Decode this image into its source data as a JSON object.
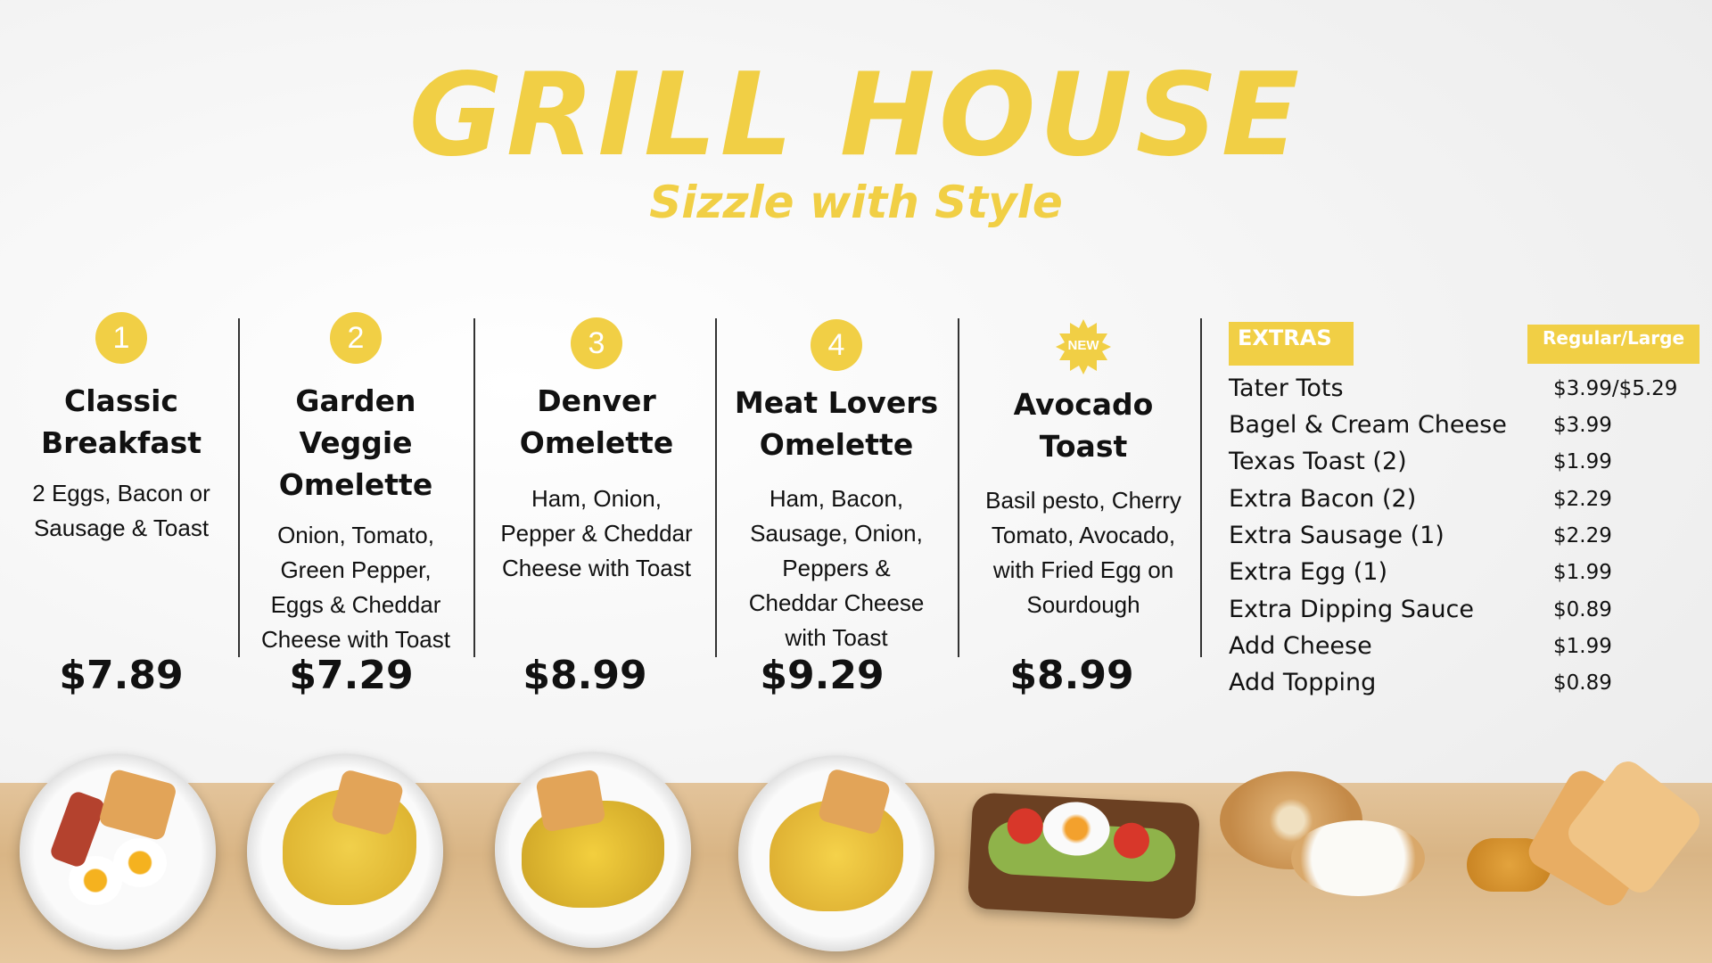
{
  "header": {
    "title": "GRILL HOUSE",
    "tagline": "Sizzle with Style"
  },
  "accent_color": "#f1cf45",
  "menu_items": [
    {
      "badge": "1",
      "title_line1": "Classic",
      "title_line2": "Breakfast",
      "description": [
        "2 Eggs, Bacon or",
        "Sausage & Toast"
      ],
      "price": "$7.89"
    },
    {
      "badge": "2",
      "title_line1": "Garden Veggie",
      "title_line2": "Omelette",
      "description": [
        "Onion, Tomato,",
        "Green Pepper,",
        "Eggs & Cheddar",
        "Cheese with Toast"
      ],
      "price": "$7.29"
    },
    {
      "badge": "3",
      "title_line1": "Denver",
      "title_line2": "Omelette",
      "description": [
        "Ham, Onion,",
        "Pepper & Cheddar",
        "Cheese with Toast"
      ],
      "price": "$8.99"
    },
    {
      "badge": "4",
      "title_line1": "Meat Lovers",
      "title_line2": "Omelette",
      "description": [
        "Ham, Bacon,",
        "Sausage, Onion,",
        "Peppers &",
        "Cheddar Cheese",
        "with Toast"
      ],
      "price": "$9.29"
    },
    {
      "badge": "NEW",
      "title_line1": "Avocado",
      "title_line2": "Toast",
      "description": [
        "Basil pesto, Cherry",
        "Tomato, Avocado,",
        "with Fried Egg on",
        "Sourdough"
      ],
      "price": "$8.99"
    }
  ],
  "extras": {
    "header": "EXTRAS",
    "size_header": "Regular/Large",
    "items": [
      {
        "name": "Tater Tots",
        "price": "$3.99/$5.29"
      },
      {
        "name": "Bagel & Cream Cheese",
        "price": "$3.99"
      },
      {
        "name": "Texas Toast (2)",
        "price": "$1.99"
      },
      {
        "name": "Extra Bacon (2)",
        "price": "$2.29"
      },
      {
        "name": "Extra Sausage (1)",
        "price": "$2.29"
      },
      {
        "name": "Extra Egg (1)",
        "price": "$1.99"
      },
      {
        "name": "Extra Dipping Sauce",
        "price": "$0.89"
      },
      {
        "name": "Add Cheese",
        "price": "$1.99"
      },
      {
        "name": "Add Topping",
        "price": "$0.89"
      }
    ]
  }
}
